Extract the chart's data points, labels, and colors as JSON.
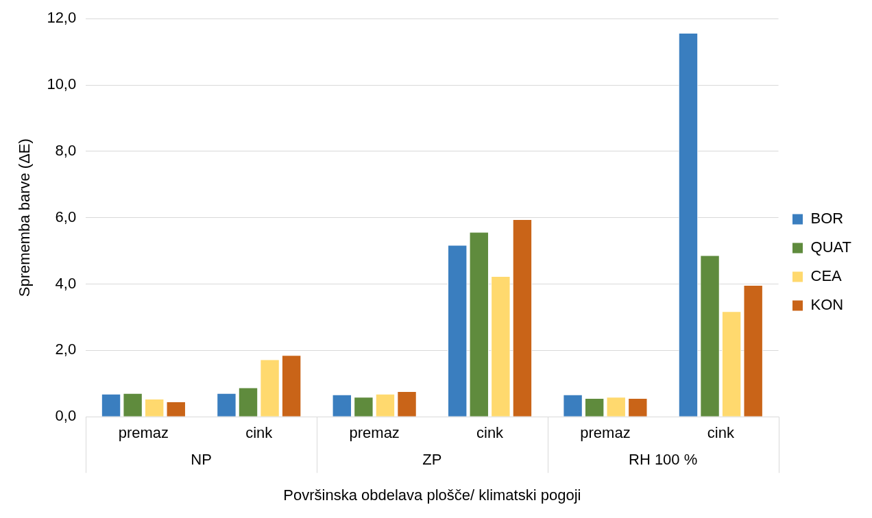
{
  "chart_data": {
    "type": "bar",
    "xlabel": "Površinska obdelava plošče/ klimatski pogoji",
    "ylabel": "Sprememba barve (ΔE)",
    "categories": [
      "premaz",
      "cink",
      "premaz",
      "cink",
      "premaz",
      "cink"
    ],
    "annotations": [
      "NP",
      "ZP",
      "RH 100 %"
    ],
    "series": [
      {
        "name": "BOR",
        "color": "#3a7ebf",
        "values": [
          0.69,
          0.71,
          0.67,
          5.18,
          0.67,
          11.57
        ]
      },
      {
        "name": "QUAT",
        "color": "#5f8b3d",
        "values": [
          0.71,
          0.88,
          0.6,
          5.57,
          0.56,
          4.87
        ]
      },
      {
        "name": "CEA",
        "color": "#ffd96e",
        "values": [
          0.54,
          1.73,
          0.69,
          4.24,
          0.6,
          3.18
        ]
      },
      {
        "name": "KON",
        "color": "#c96418",
        "values": [
          0.46,
          1.86,
          0.77,
          5.95,
          0.56,
          3.97
        ]
      }
    ],
    "ylim": [
      0,
      12
    ],
    "yticks": [
      {
        "value": 0,
        "label": "0,0"
      },
      {
        "value": 2,
        "label": "2,0"
      },
      {
        "value": 4,
        "label": "4,0"
      },
      {
        "value": 6,
        "label": "6,0"
      },
      {
        "value": 8,
        "label": "8,0"
      },
      {
        "value": 10,
        "label": "10,0"
      },
      {
        "value": 12,
        "label": "12,0"
      }
    ],
    "grid": "y",
    "legend": "right"
  }
}
